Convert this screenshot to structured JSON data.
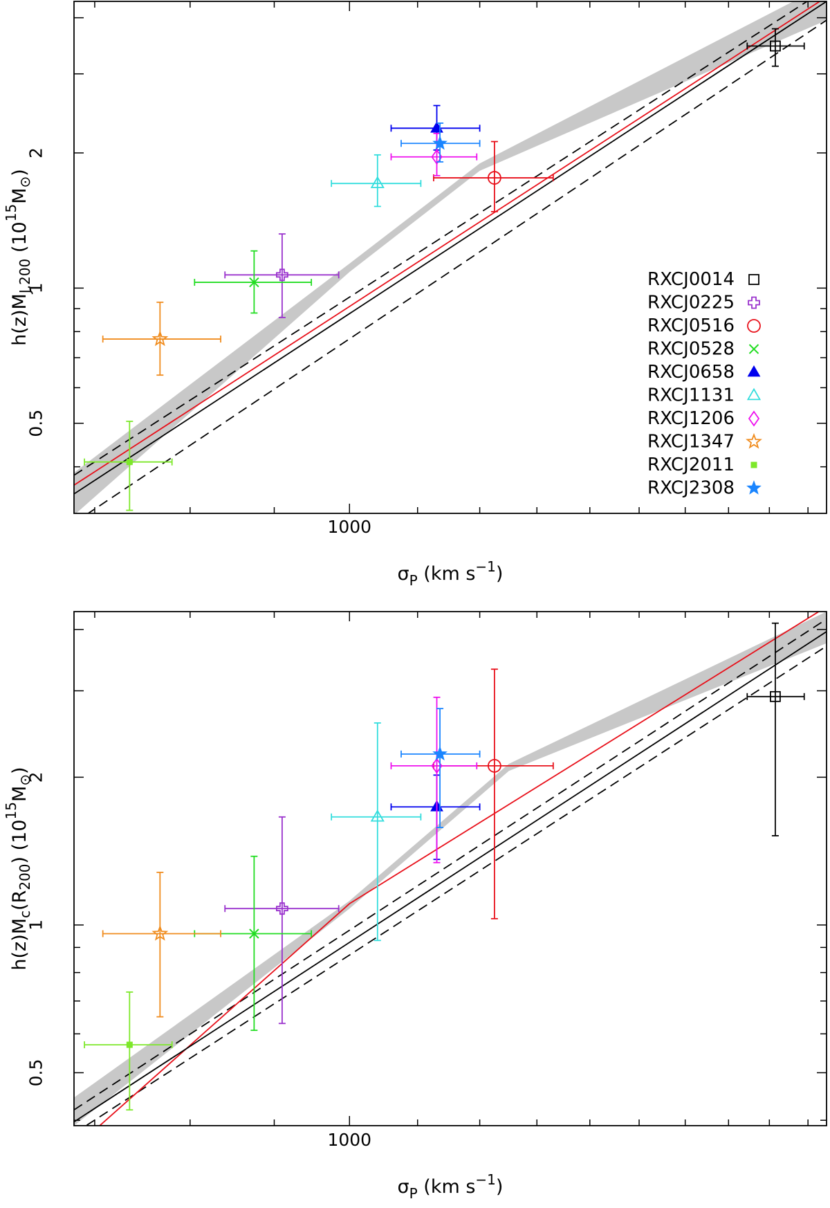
{
  "chart_data": [
    {
      "type": "scatter",
      "panel": "top",
      "xscale": "log",
      "yscale": "log",
      "xlim": [
        680,
        1950
      ],
      "ylim": [
        0.315,
        4.35
      ],
      "xticks": [
        700,
        800,
        900,
        1000,
        1100,
        1200,
        1300,
        1400,
        1500,
        1600,
        1700,
        1800,
        1900
      ],
      "xticklabels": [
        {
          "value": 1000,
          "label": "1000"
        }
      ],
      "yticks": [
        0.4,
        0.5,
        0.6,
        0.7,
        0.8,
        0.9,
        1,
        2,
        3,
        4
      ],
      "yticklabels": [
        {
          "value": 0.5,
          "label": "0.5"
        },
        {
          "value": 1,
          "label": "1"
        },
        {
          "value": 2,
          "label": "2"
        }
      ],
      "xlabel": {
        "main": "σ",
        "sub": "P",
        "rest": " (km s",
        "sup": "−1",
        "end": ")"
      },
      "ylabel": {
        "segments": [
          "h(z)M",
          "J,200",
          " (10",
          "15",
          "M",
          "⊙",
          ")"
        ]
      },
      "fits": {
        "black": [
          [
            680,
            0.348
          ],
          [
            1950,
            4.35
          ]
        ],
        "red": [
          [
            680,
            0.364
          ],
          [
            1950,
            4.45
          ]
        ],
        "dashed_upper": [
          [
            680,
            0.383
          ],
          [
            1950,
            4.64
          ]
        ],
        "dashed_lower": [
          [
            680,
            0.3
          ],
          [
            1950,
            3.95
          ]
        ],
        "band_upper": [
          [
            680,
            0.388
          ],
          [
            1000,
            1.134
          ],
          [
            1200,
            1.895
          ],
          [
            1950,
            4.75
          ]
        ],
        "band_lower": [
          [
            680,
            0.312
          ],
          [
            1000,
            1.086
          ],
          [
            1200,
            1.825
          ],
          [
            1950,
            3.95
          ]
        ]
      },
      "points": [
        {
          "cluster": "RXCJ0014",
          "x": 1815,
          "y": 3.46,
          "xerr": [
            1745,
            1890
          ],
          "yerr": [
            3.12,
            3.78
          ],
          "marker": "square-open",
          "color": "#000000"
        },
        {
          "cluster": "RXCJ0225",
          "x": 910,
          "y": 1.07,
          "xerr": [
            840,
            985
          ],
          "yerr": [
            0.86,
            1.32
          ],
          "marker": "cross-open",
          "color": "#9a32cd"
        },
        {
          "cluster": "RXCJ0516",
          "x": 1225,
          "y": 1.76,
          "xerr": [
            1125,
            1330
          ],
          "yerr": [
            1.48,
            2.12
          ],
          "marker": "circle-open",
          "color": "#e8101a"
        },
        {
          "cluster": "RXCJ0528",
          "x": 875,
          "y": 1.03,
          "xerr": [
            805,
            948
          ],
          "yerr": [
            0.88,
            1.21
          ],
          "marker": "x",
          "color": "#22dd22"
        },
        {
          "cluster": "RXCJ0658",
          "x": 1130,
          "y": 2.27,
          "xerr": [
            1060,
            1200
          ],
          "yerr": [
            2.03,
            2.55
          ],
          "marker": "triangle-filled",
          "color": "#0000ee"
        },
        {
          "cluster": "RXCJ1131",
          "x": 1040,
          "y": 1.71,
          "xerr": [
            975,
            1105
          ],
          "yerr": [
            1.52,
            1.98
          ],
          "marker": "triangle-open",
          "color": "#33dddd"
        },
        {
          "cluster": "RXCJ1206",
          "x": 1130,
          "y": 1.96,
          "xerr": [
            1060,
            1195
          ],
          "yerr": [
            1.78,
            2.21
          ],
          "marker": "diamond-open",
          "color": "#ee10ee"
        },
        {
          "cluster": "RXCJ1347",
          "x": 767,
          "y": 0.77,
          "xerr": [
            708,
            835
          ],
          "yerr": [
            0.64,
            0.93
          ],
          "marker": "star-open",
          "color": "#f08c1e"
        },
        {
          "cluster": "RXCJ2011",
          "x": 735,
          "y": 0.41,
          "xerr": [
            690,
            780
          ],
          "yerr": [
            0.32,
            0.505
          ],
          "marker": "square-filled",
          "color": "#7de82a"
        },
        {
          "cluster": "RXCJ2308",
          "x": 1135,
          "y": 2.1,
          "xerr": [
            1075,
            1200
          ],
          "yerr": [
            1.91,
            2.33
          ],
          "marker": "star-filled",
          "color": "#1a85ff"
        }
      ],
      "legend": {
        "position": "lower-right",
        "entries": [
          {
            "label": "RXCJ0014",
            "marker": "square-open",
            "color": "#000000"
          },
          {
            "label": "RXCJ0225",
            "marker": "cross-open",
            "color": "#9a32cd"
          },
          {
            "label": "RXCJ0516",
            "marker": "circle-open",
            "color": "#e8101a"
          },
          {
            "label": "RXCJ0528",
            "marker": "x",
            "color": "#22dd22"
          },
          {
            "label": "RXCJ0658",
            "marker": "triangle-filled",
            "color": "#0000ee"
          },
          {
            "label": "RXCJ1131",
            "marker": "triangle-open",
            "color": "#33dddd"
          },
          {
            "label": "RXCJ1206",
            "marker": "diamond-open",
            "color": "#ee10ee"
          },
          {
            "label": "RXCJ1347",
            "marker": "star-open",
            "color": "#f08c1e"
          },
          {
            "label": "RXCJ2011",
            "marker": "square-filled",
            "color": "#7de82a"
          },
          {
            "label": "RXCJ2308",
            "marker": "star-filled",
            "color": "#1a85ff"
          }
        ]
      }
    },
    {
      "type": "scatter",
      "panel": "bottom",
      "xscale": "log",
      "yscale": "log",
      "xlim": [
        680,
        1950
      ],
      "ylim": [
        0.39,
        4.35
      ],
      "xticks": [
        700,
        800,
        900,
        1000,
        1100,
        1200,
        1300,
        1400,
        1500,
        1600,
        1700,
        1800,
        1900
      ],
      "xticklabels": [
        {
          "value": 1000,
          "label": "1000"
        }
      ],
      "yticks": [
        0.4,
        0.5,
        0.6,
        0.7,
        0.8,
        0.9,
        1,
        2,
        3,
        4
      ],
      "yticklabels": [
        {
          "value": 0.5,
          "label": "0.5"
        },
        {
          "value": 1,
          "label": "1"
        },
        {
          "value": 2,
          "label": "2"
        }
      ],
      "xlabel": {
        "main": "σ",
        "sub": "P",
        "rest": " (km s",
        "sup": "−1",
        "end": ")"
      },
      "ylabel": {
        "segments": [
          "h(z)M",
          "c",
          "(R",
          "200",
          ") (10",
          "15",
          "M",
          "⊙",
          ")"
        ]
      },
      "fits": {
        "black": [
          [
            680,
            0.397
          ],
          [
            1950,
            3.96
          ]
        ],
        "red": [
          [
            700,
            0.382
          ],
          [
            1000,
            1.105
          ],
          [
            1950,
            4.45
          ]
        ],
        "dashed_upper": [
          [
            680,
            0.42
          ],
          [
            1950,
            4.2
          ]
        ],
        "dashed_lower": [
          [
            680,
            0.376
          ],
          [
            1950,
            3.7
          ]
        ],
        "band_upper": [
          [
            680,
            0.445
          ],
          [
            1000,
            1.12
          ],
          [
            1250,
            2.13
          ],
          [
            1950,
            4.35
          ]
        ],
        "band_lower": [
          [
            680,
            0.39
          ],
          [
            1000,
            1.08
          ],
          [
            1250,
            2.06
          ],
          [
            1950,
            3.75
          ]
        ]
      },
      "points": [
        {
          "cluster": "RXCJ0014",
          "x": 1815,
          "y": 2.92,
          "xerr": [
            1745,
            1890
          ],
          "yerr": [
            1.52,
            4.12
          ],
          "marker": "square-open",
          "color": "#000000"
        },
        {
          "cluster": "RXCJ0225",
          "x": 910,
          "y": 1.08,
          "xerr": [
            840,
            985
          ],
          "yerr": [
            0.63,
            1.66
          ],
          "marker": "cross-open",
          "color": "#9a32cd"
        },
        {
          "cluster": "RXCJ0516",
          "x": 1225,
          "y": 2.11,
          "xerr": [
            1125,
            1330
          ],
          "yerr": [
            1.03,
            3.32
          ],
          "marker": "circle-open",
          "color": "#e8101a"
        },
        {
          "cluster": "RXCJ0528",
          "x": 875,
          "y": 0.96,
          "xerr": [
            805,
            948
          ],
          "yerr": [
            0.61,
            1.38
          ],
          "marker": "x",
          "color": "#22dd22"
        },
        {
          "cluster": "RXCJ0658",
          "x": 1130,
          "y": 1.74,
          "xerr": [
            1060,
            1200
          ],
          "yerr": [
            1.36,
            2.02
          ],
          "marker": "triangle-filled",
          "color": "#0000ee"
        },
        {
          "cluster": "RXCJ1131",
          "x": 1040,
          "y": 1.66,
          "xerr": [
            975,
            1105
          ],
          "yerr": [
            0.93,
            2.58
          ],
          "marker": "triangle-open",
          "color": "#33dddd"
        },
        {
          "cluster": "RXCJ1206",
          "x": 1130,
          "y": 2.11,
          "xerr": [
            1060,
            1195
          ],
          "yerr": [
            1.34,
            2.91
          ],
          "marker": "diamond-open",
          "color": "#ee10ee"
        },
        {
          "cluster": "RXCJ1347",
          "x": 767,
          "y": 0.96,
          "xerr": [
            708,
            835
          ],
          "yerr": [
            0.65,
            1.28
          ],
          "marker": "star-open",
          "color": "#f08c1e"
        },
        {
          "cluster": "RXCJ2011",
          "x": 735,
          "y": 0.57,
          "xerr": [
            690,
            780
          ],
          "yerr": [
            0.42,
            0.73
          ],
          "marker": "square-filled",
          "color": "#7de82a"
        },
        {
          "cluster": "RXCJ2308",
          "x": 1135,
          "y": 2.23,
          "xerr": [
            1075,
            1200
          ],
          "yerr": [
            1.58,
            2.76
          ],
          "marker": "star-filled",
          "color": "#1a85ff"
        }
      ]
    }
  ]
}
